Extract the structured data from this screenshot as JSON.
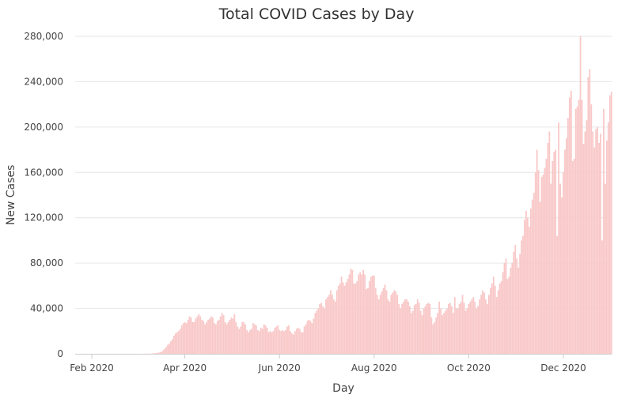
{
  "chart_data": {
    "type": "bar",
    "title": "Total COVID Cases by Day",
    "xlabel": "Day",
    "ylabel": "New Cases",
    "ylim": [
      0,
      280000
    ],
    "yticks": [
      0,
      40000,
      80000,
      120000,
      160000,
      200000,
      240000,
      280000
    ],
    "ytick_labels": [
      "0",
      "40,000",
      "80,000",
      "120,000",
      "160,000",
      "200,000",
      "240,000",
      "280,000"
    ],
    "xticks": [
      "2020-02-01",
      "2020-04-01",
      "2020-06-01",
      "2020-08-01",
      "2020-10-01",
      "2020-12-01"
    ],
    "xtick_labels": [
      "Feb 2020",
      "Apr 2020",
      "Jun 2020",
      "Aug 2020",
      "Oct 2020",
      "Dec 2020"
    ],
    "x_start": "2020-01-22",
    "x_end": "2020-12-31",
    "grid": true,
    "bar_color": "#f9c8c8",
    "values": [
      1,
      0,
      1,
      2,
      0,
      1,
      0,
      2,
      1,
      0,
      1,
      2,
      3,
      1,
      2,
      1,
      1,
      1,
      2,
      1,
      1,
      2,
      1,
      1,
      1,
      2,
      1,
      1,
      1,
      1,
      1,
      2,
      1,
      1,
      2,
      1,
      1,
      2,
      1,
      1,
      10,
      5,
      20,
      30,
      60,
      70,
      100,
      120,
      80,
      300,
      400,
      500,
      700,
      1000,
      1300,
      1800,
      3000,
      4500,
      6000,
      8000,
      9000,
      11000,
      13000,
      16000,
      18000,
      19000,
      20000,
      22000,
      25000,
      27000,
      28000,
      27000,
      30000,
      33000,
      32000,
      28000,
      28000,
      31000,
      33000,
      35000,
      33000,
      30000,
      29000,
      26000,
      28000,
      30000,
      31000,
      33000,
      32000,
      27000,
      26000,
      29000,
      30000,
      33000,
      36000,
      34000,
      28000,
      26000,
      28000,
      30000,
      32000,
      31000,
      35000,
      28000,
      24000,
      22000,
      24000,
      28000,
      28000,
      26000,
      21000,
      19000,
      21000,
      22000,
      27000,
      26000,
      25000,
      21000,
      20000,
      23000,
      22000,
      26000,
      25000,
      23000,
      19000,
      20000,
      19000,
      20000,
      23000,
      24000,
      25000,
      21000,
      20000,
      21000,
      20000,
      21000,
      24000,
      25000,
      20000,
      18000,
      17000,
      20000,
      22000,
      23000,
      22000,
      19000,
      19000,
      24000,
      26000,
      29000,
      30000,
      29000,
      27000,
      31000,
      36000,
      38000,
      40000,
      44000,
      45000,
      42000,
      40000,
      48000,
      50000,
      52000,
      56000,
      52000,
      48000,
      46000,
      56000,
      60000,
      62000,
      68000,
      63000,
      60000,
      63000,
      66000,
      70000,
      75000,
      74000,
      62000,
      62000,
      64000,
      70000,
      72000,
      70000,
      74000,
      70000,
      57000,
      58000,
      64000,
      68000,
      69000,
      69000,
      58000,
      52000,
      48000,
      52000,
      55000,
      58000,
      61000,
      56000,
      48000,
      46000,
      52000,
      54000,
      56000,
      55000,
      52000,
      44000,
      40000,
      44000,
      46000,
      48000,
      48000,
      46000,
      42000,
      36000,
      38000,
      43000,
      44000,
      48000,
      45000,
      38000,
      34000,
      40000,
      42000,
      44000,
      45000,
      44000,
      32000,
      26000,
      28000,
      32000,
      36000,
      46000,
      40000,
      34000,
      36000,
      38000,
      40000,
      44000,
      45000,
      42000,
      36000,
      50000,
      40000,
      40000,
      44000,
      46000,
      52000,
      45000,
      38000,
      40000,
      44000,
      46000,
      48000,
      50000,
      46000,
      40000,
      42000,
      48000,
      52000,
      56000,
      54000,
      48000,
      44000,
      52000,
      58000,
      62000,
      68000,
      60000,
      50000,
      56000,
      62000,
      64000,
      72000,
      80000,
      84000,
      66000,
      68000,
      76000,
      80000,
      90000,
      96000,
      84000,
      76000,
      88000,
      100000,
      104000,
      118000,
      126000,
      120000,
      112000,
      128000,
      136000,
      142000,
      160000,
      180000,
      162000,
      134000,
      156000,
      158000,
      164000,
      172000,
      186000,
      196000,
      150000,
      170000,
      178000,
      180000,
      104000,
      204000,
      150000,
      138000,
      160000,
      180000,
      190000,
      208000,
      226000,
      232000,
      170000,
      172000,
      216000,
      218000,
      224000,
      280000,
      224000,
      185000,
      196000,
      206000,
      244000,
      251000,
      220000,
      196000,
      182000,
      198000,
      200000,
      186000,
      194000,
      100000,
      216000,
      150000,
      188000,
      204000,
      228000,
      231000
    ]
  }
}
